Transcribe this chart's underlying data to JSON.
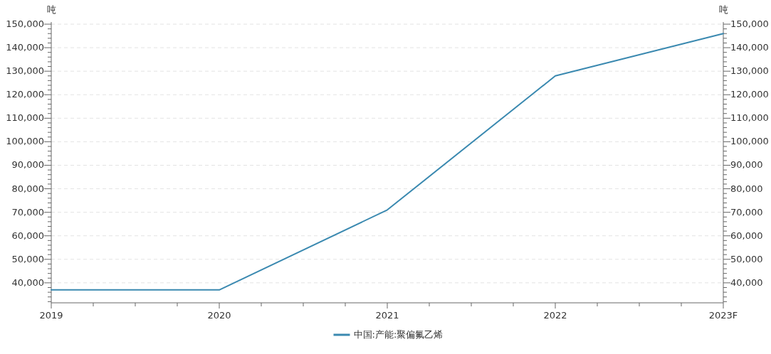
{
  "chart_data": {
    "type": "line",
    "ylabel": "吨",
    "y2label": "吨",
    "categories": [
      "2019",
      "2020",
      "2021",
      "2022",
      "2023F"
    ],
    "series": [
      {
        "name": "中国:产能:聚偏氟乙烯",
        "color": "#3a89b0",
        "values": [
          37000,
          37000,
          71000,
          128000,
          146000
        ]
      }
    ],
    "ylim": [
      31500,
      150000
    ],
    "yticks": [
      {
        "value": 32000,
        "label": null
      },
      {
        "value": 34000,
        "label": null
      },
      {
        "value": 36000,
        "label": null
      },
      {
        "value": 38000,
        "label": null
      },
      {
        "value": 40000,
        "label": "40,000"
      },
      {
        "value": 42000,
        "label": null
      },
      {
        "value": 44000,
        "label": null
      },
      {
        "value": 46000,
        "label": null
      },
      {
        "value": 48000,
        "label": null
      },
      {
        "value": 50000,
        "label": "50,000"
      },
      {
        "value": 52000,
        "label": null
      },
      {
        "value": 54000,
        "label": null
      },
      {
        "value": 56000,
        "label": null
      },
      {
        "value": 58000,
        "label": null
      },
      {
        "value": 60000,
        "label": "60,000"
      },
      {
        "value": 62000,
        "label": null
      },
      {
        "value": 64000,
        "label": null
      },
      {
        "value": 66000,
        "label": null
      },
      {
        "value": 68000,
        "label": null
      },
      {
        "value": 70000,
        "label": "70,000"
      },
      {
        "value": 72000,
        "label": null
      },
      {
        "value": 74000,
        "label": null
      },
      {
        "value": 76000,
        "label": null
      },
      {
        "value": 78000,
        "label": null
      },
      {
        "value": 80000,
        "label": "80,000"
      },
      {
        "value": 82000,
        "label": null
      },
      {
        "value": 84000,
        "label": null
      },
      {
        "value": 86000,
        "label": null
      },
      {
        "value": 88000,
        "label": null
      },
      {
        "value": 90000,
        "label": "90,000"
      },
      {
        "value": 92000,
        "label": null
      },
      {
        "value": 94000,
        "label": null
      },
      {
        "value": 96000,
        "label": null
      },
      {
        "value": 98000,
        "label": null
      },
      {
        "value": 100000,
        "label": "100,000"
      },
      {
        "value": 102000,
        "label": null
      },
      {
        "value": 104000,
        "label": null
      },
      {
        "value": 106000,
        "label": null
      },
      {
        "value": 108000,
        "label": null
      },
      {
        "value": 110000,
        "label": "110,000"
      },
      {
        "value": 112000,
        "label": null
      },
      {
        "value": 114000,
        "label": null
      },
      {
        "value": 116000,
        "label": null
      },
      {
        "value": 118000,
        "label": null
      },
      {
        "value": 120000,
        "label": "120,000"
      },
      {
        "value": 122000,
        "label": null
      },
      {
        "value": 124000,
        "label": null
      },
      {
        "value": 126000,
        "label": null
      },
      {
        "value": 128000,
        "label": null
      },
      {
        "value": 130000,
        "label": "130,000"
      },
      {
        "value": 132000,
        "label": null
      },
      {
        "value": 134000,
        "label": null
      },
      {
        "value": 136000,
        "label": null
      },
      {
        "value": 138000,
        "label": null
      },
      {
        "value": 140000,
        "label": "140,000"
      },
      {
        "value": 142000,
        "label": null
      },
      {
        "value": 144000,
        "label": null
      },
      {
        "value": 146000,
        "label": null
      },
      {
        "value": 148000,
        "label": null
      },
      {
        "value": 150000,
        "label": "150,000"
      }
    ],
    "y2lim": [
      31500,
      150000
    ],
    "y2ticks": [
      {
        "value": 32000,
        "label": null
      },
      {
        "value": 34000,
        "label": null
      },
      {
        "value": 36000,
        "label": null
      },
      {
        "value": 38000,
        "label": null
      },
      {
        "value": 40000,
        "label": "40,000"
      },
      {
        "value": 42000,
        "label": null
      },
      {
        "value": 44000,
        "label": null
      },
      {
        "value": 46000,
        "label": null
      },
      {
        "value": 48000,
        "label": null
      },
      {
        "value": 50000,
        "label": "50,000"
      },
      {
        "value": 52000,
        "label": null
      },
      {
        "value": 54000,
        "label": null
      },
      {
        "value": 56000,
        "label": null
      },
      {
        "value": 58000,
        "label": null
      },
      {
        "value": 60000,
        "label": "60,000"
      },
      {
        "value": 62000,
        "label": null
      },
      {
        "value": 64000,
        "label": null
      },
      {
        "value": 66000,
        "label": null
      },
      {
        "value": 68000,
        "label": null
      },
      {
        "value": 70000,
        "label": "70,000"
      },
      {
        "value": 72000,
        "label": null
      },
      {
        "value": 74000,
        "label": null
      },
      {
        "value": 76000,
        "label": null
      },
      {
        "value": 78000,
        "label": null
      },
      {
        "value": 80000,
        "label": "80,000"
      },
      {
        "value": 82000,
        "label": null
      },
      {
        "value": 84000,
        "label": null
      },
      {
        "value": 86000,
        "label": null
      },
      {
        "value": 88000,
        "label": null
      },
      {
        "value": 90000,
        "label": "90,000"
      },
      {
        "value": 92000,
        "label": null
      },
      {
        "value": 94000,
        "label": null
      },
      {
        "value": 96000,
        "label": null
      },
      {
        "value": 98000,
        "label": null
      },
      {
        "value": 100000,
        "label": "100,000"
      },
      {
        "value": 102000,
        "label": null
      },
      {
        "value": 104000,
        "label": null
      },
      {
        "value": 106000,
        "label": null
      },
      {
        "value": 108000,
        "label": null
      },
      {
        "value": 110000,
        "label": "110,000"
      },
      {
        "value": 112000,
        "label": null
      },
      {
        "value": 114000,
        "label": null
      },
      {
        "value": 116000,
        "label": null
      },
      {
        "value": 118000,
        "label": null
      },
      {
        "value": 120000,
        "label": "120,000"
      },
      {
        "value": 122000,
        "label": null
      },
      {
        "value": 124000,
        "label": null
      },
      {
        "value": 126000,
        "label": null
      },
      {
        "value": 128000,
        "label": null
      },
      {
        "value": 130000,
        "label": "130,000"
      },
      {
        "value": 132000,
        "label": null
      },
      {
        "value": 134000,
        "label": null
      },
      {
        "value": 136000,
        "label": null
      },
      {
        "value": 138000,
        "label": null
      },
      {
        "value": 140000,
        "label": "140,000"
      },
      {
        "value": 142000,
        "label": null
      },
      {
        "value": 144000,
        "label": null
      },
      {
        "value": 146000,
        "label": null
      },
      {
        "value": 148000,
        "label": null
      },
      {
        "value": 150000,
        "label": "150,000"
      }
    ],
    "grid": "y",
    "legend": "bottom",
    "marker": "none",
    "line_style": "solid"
  }
}
